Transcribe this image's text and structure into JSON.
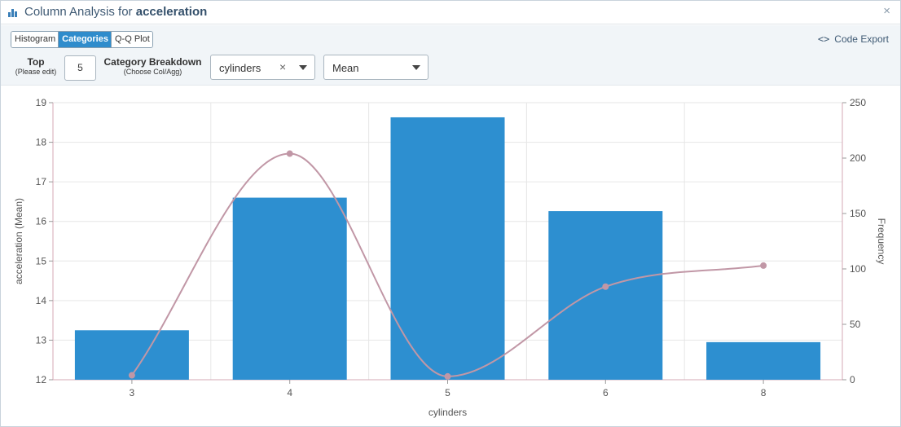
{
  "window": {
    "title_prefix": "Column Analysis for",
    "title_column": "acceleration",
    "close_symbol": "×"
  },
  "toolbar": {
    "tabs": [
      {
        "label": "Histogram",
        "active": false
      },
      {
        "label": "Categories",
        "active": true
      },
      {
        "label": "Q-Q Plot",
        "active": false
      }
    ],
    "code_export_label": "Code Export",
    "code_export_icon": "<>",
    "top_label": "Top",
    "top_sub": "(Please edit)",
    "top_value": "5",
    "breakdown_label": "Category Breakdown",
    "breakdown_sub": "(Choose Col/Agg)",
    "category_column": "cylinders",
    "clear_symbol": "×",
    "aggregation": "Mean"
  },
  "chart_data": {
    "type": "bar",
    "xlabel": "cylinders",
    "ylabel": "acceleration (Mean)",
    "y2label": "Frequency",
    "categories": [
      "3",
      "4",
      "5",
      "6",
      "8"
    ],
    "series": [
      {
        "name": "acceleration (Mean)",
        "type": "bar",
        "axis": "left",
        "color": "#2d8fd0",
        "values": [
          13.25,
          16.6,
          18.63,
          16.26,
          12.95
        ]
      },
      {
        "name": "Frequency",
        "type": "line",
        "axis": "right",
        "color": "#c197a6",
        "values": [
          4,
          204,
          3,
          84,
          103
        ]
      }
    ],
    "ylim": [
      12,
      19
    ],
    "yticks": [
      12,
      13,
      14,
      15,
      16,
      17,
      18,
      19
    ],
    "y2lim": [
      0,
      250
    ],
    "y2ticks": [
      0,
      50,
      100,
      150,
      200,
      250
    ],
    "grid": true
  }
}
